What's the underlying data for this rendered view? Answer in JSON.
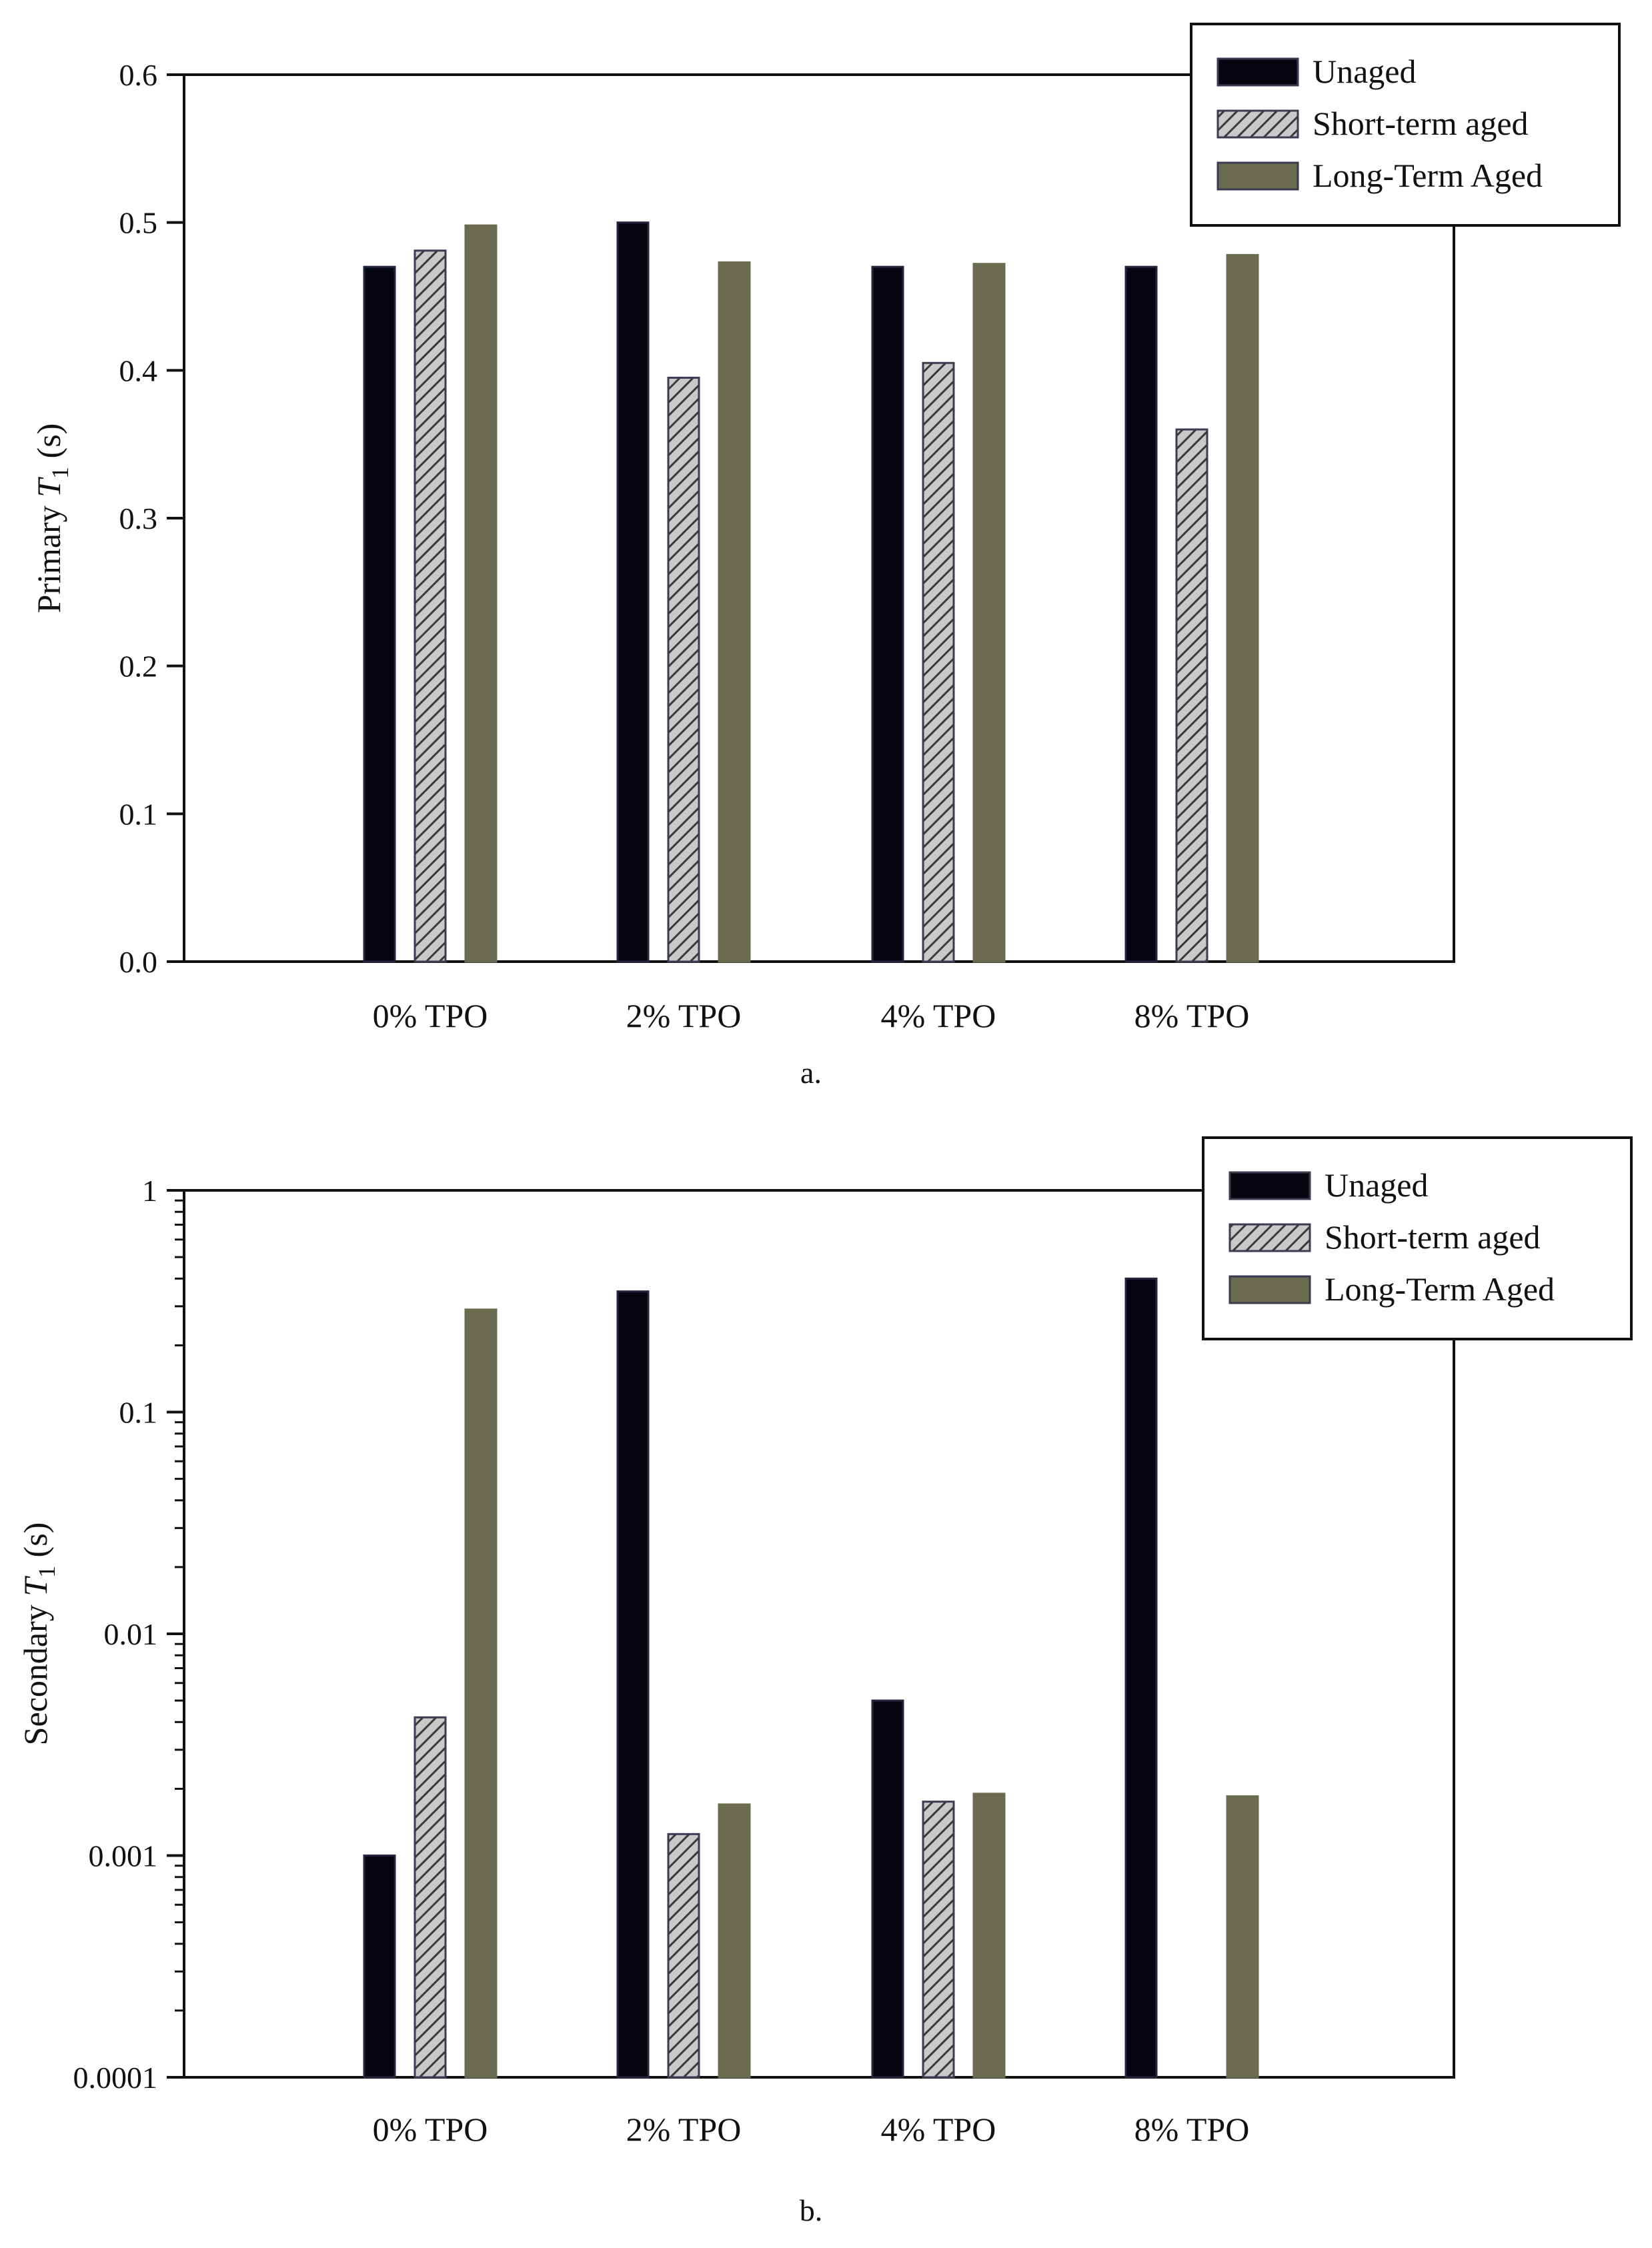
{
  "chart_data": [
    {
      "type": "bar",
      "panel": "a",
      "caption": "a.",
      "ylabel_prefix": "Primary ",
      "ylabel_symbol": "T",
      "ylabel_sub": "1",
      "ylabel_suffix": " (s)",
      "yscale": "linear",
      "ylim": [
        0,
        0.6
      ],
      "yticks": [
        0.0,
        0.1,
        0.2,
        0.3,
        0.4,
        0.5,
        0.6
      ],
      "ytick_labels": [
        "0.0",
        "0.1",
        "0.2",
        "0.3",
        "0.4",
        "0.5",
        "0.6"
      ],
      "categories": [
        "0% TPO",
        "2% TPO",
        "4% TPO",
        "8% TPO"
      ],
      "series": [
        {
          "name": "Unaged",
          "style": "solid-black",
          "values": [
            0.47,
            0.5,
            0.47,
            0.47
          ]
        },
        {
          "name": "Short-term aged",
          "style": "hatched-gray",
          "values": [
            0.481,
            0.395,
            0.405,
            0.36
          ]
        },
        {
          "name": "Long-Term Aged",
          "style": "solid-olive",
          "values": [
            0.498,
            0.473,
            0.472,
            0.478
          ]
        }
      ],
      "legend_position": "top-right"
    },
    {
      "type": "bar",
      "panel": "b",
      "caption": "b.",
      "ylabel_prefix": "Secondary ",
      "ylabel_symbol": "T",
      "ylabel_sub": "1",
      "ylabel_suffix": " (s)",
      "yscale": "log",
      "ylim": [
        0.0001,
        1
      ],
      "yticks": [
        0.0001,
        0.001,
        0.01,
        0.1,
        1
      ],
      "ytick_labels": [
        "0.0001",
        "0.001",
        "0.01",
        "0.1",
        "1"
      ],
      "categories": [
        "0% TPO",
        "2% TPO",
        "4% TPO",
        "8% TPO"
      ],
      "series": [
        {
          "name": "Unaged",
          "style": "solid-black",
          "values": [
            0.001,
            0.35,
            0.005,
            0.4
          ]
        },
        {
          "name": "Short-term aged",
          "style": "hatched-gray",
          "values": [
            0.0042,
            0.00125,
            0.00175,
            null
          ]
        },
        {
          "name": "Long-Term Aged",
          "style": "solid-olive",
          "values": [
            0.29,
            0.0017,
            0.0019,
            0.00185
          ]
        }
      ],
      "legend_position": "top-right"
    }
  ],
  "colors": {
    "unaged": "#05060f",
    "unaged_edge": "#24243e",
    "short_term_fill": "#c9c9c9",
    "short_term_hatch": "#3a3a3a",
    "long_term": "#6b6b4f",
    "axis": "#111111"
  }
}
